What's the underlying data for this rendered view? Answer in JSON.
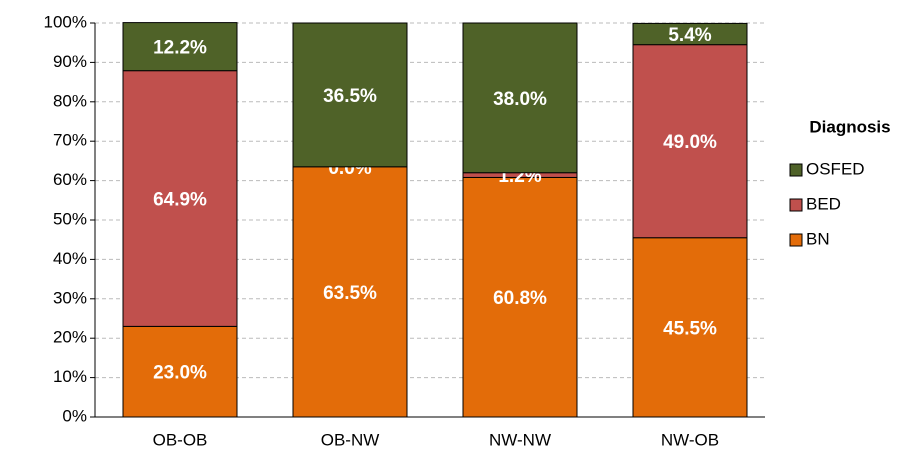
{
  "chart_data": {
    "type": "stacked_bar",
    "categories": [
      "OB-OB",
      "OB-NW",
      "NW-NW",
      "NW-OB"
    ],
    "series": [
      {
        "name": "BN",
        "color": "#e36c09",
        "values": [
          23.0,
          63.5,
          60.8,
          45.5
        ],
        "value_labels": [
          "23.0%",
          "63.5%",
          "60.8%",
          "45.5%"
        ]
      },
      {
        "name": "BED",
        "color": "#c0504d",
        "values": [
          64.9,
          0.0,
          1.2,
          49.0
        ],
        "value_labels": [
          "64.9%",
          "0.0%",
          "1.2%",
          "49.0%"
        ]
      },
      {
        "name": "OSFED",
        "color": "#4f6228",
        "values": [
          12.2,
          36.5,
          38.0,
          5.4
        ],
        "value_labels": [
          "12.2%",
          "36.5%",
          "38.0%",
          "5.4%"
        ]
      }
    ],
    "legend_title": "Diagnosis",
    "legend": "right",
    "ylim": [
      0,
      100
    ],
    "yticks": [
      {
        "value": 0,
        "label": "0%"
      },
      {
        "value": 10,
        "label": "10%"
      },
      {
        "value": 20,
        "label": "20%"
      },
      {
        "value": 30,
        "label": "30%"
      },
      {
        "value": 40,
        "label": "40%"
      },
      {
        "value": 50,
        "label": "50%"
      },
      {
        "value": 60,
        "label": "60%"
      },
      {
        "value": 70,
        "label": "70%"
      },
      {
        "value": 80,
        "label": "80%"
      },
      {
        "value": 90,
        "label": "90%"
      },
      {
        "value": 100,
        "label": "100%"
      }
    ],
    "grid": true
  }
}
